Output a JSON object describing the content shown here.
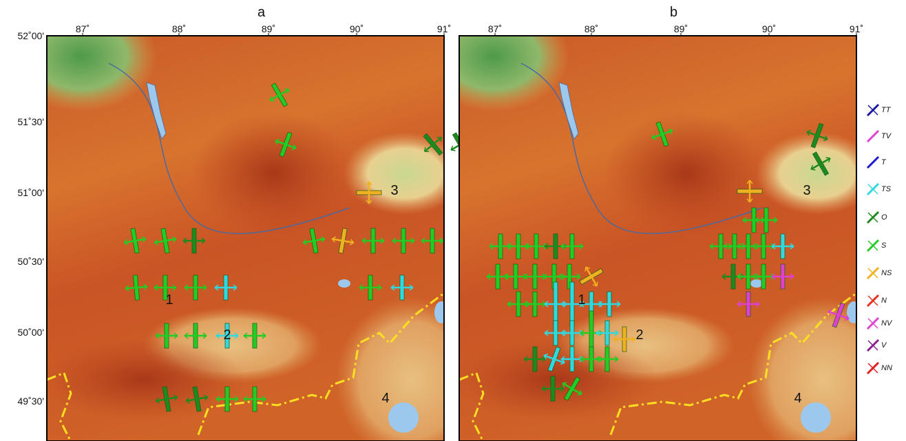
{
  "panels": [
    {
      "label": "a",
      "lon_labels": [
        "87˚",
        "88˚",
        "89˚",
        "90˚",
        "91˚"
      ],
      "lat_labels": [
        "52˚00'",
        "51˚30'",
        "51˚00'",
        "50˚30'",
        "50˚00'",
        "49˚30'"
      ],
      "regions": [
        "1",
        "2",
        "3",
        "4"
      ]
    },
    {
      "label": "b",
      "lon_labels": [
        "87˚",
        "88˚",
        "89˚",
        "90˚",
        "91˚"
      ],
      "regions": [
        "1",
        "2",
        "3",
        "4"
      ]
    }
  ],
  "legend": [
    "TT",
    "TV",
    "T",
    "TS",
    "O",
    "S",
    "NS",
    "N",
    "NV",
    "V",
    "NN"
  ]
}
